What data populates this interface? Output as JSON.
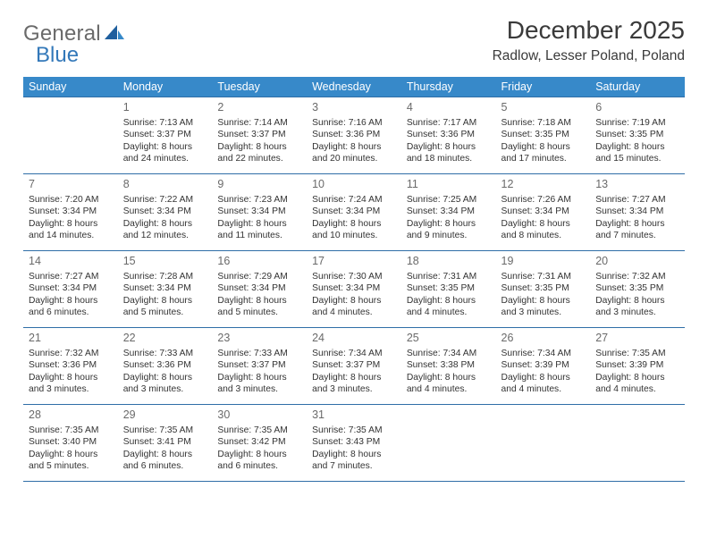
{
  "brand": {
    "word1": "General",
    "word2": "Blue"
  },
  "title": "December 2025",
  "location": "Radlow, Lesser Poland, Poland",
  "colors": {
    "header_bg": "#3789c9",
    "header_fg": "#ffffff",
    "rule": "#2f6ea7",
    "brand_gray": "#6a6a6a",
    "brand_blue": "#3378b9"
  },
  "weekdays": [
    "Sunday",
    "Monday",
    "Tuesday",
    "Wednesday",
    "Thursday",
    "Friday",
    "Saturday"
  ],
  "start_offset": 1,
  "days": [
    {
      "n": 1,
      "sr": "7:13 AM",
      "ss": "3:37 PM",
      "dl": "8 hours and 24 minutes."
    },
    {
      "n": 2,
      "sr": "7:14 AM",
      "ss": "3:37 PM",
      "dl": "8 hours and 22 minutes."
    },
    {
      "n": 3,
      "sr": "7:16 AM",
      "ss": "3:36 PM",
      "dl": "8 hours and 20 minutes."
    },
    {
      "n": 4,
      "sr": "7:17 AM",
      "ss": "3:36 PM",
      "dl": "8 hours and 18 minutes."
    },
    {
      "n": 5,
      "sr": "7:18 AM",
      "ss": "3:35 PM",
      "dl": "8 hours and 17 minutes."
    },
    {
      "n": 6,
      "sr": "7:19 AM",
      "ss": "3:35 PM",
      "dl": "8 hours and 15 minutes."
    },
    {
      "n": 7,
      "sr": "7:20 AM",
      "ss": "3:34 PM",
      "dl": "8 hours and 14 minutes."
    },
    {
      "n": 8,
      "sr": "7:22 AM",
      "ss": "3:34 PM",
      "dl": "8 hours and 12 minutes."
    },
    {
      "n": 9,
      "sr": "7:23 AM",
      "ss": "3:34 PM",
      "dl": "8 hours and 11 minutes."
    },
    {
      "n": 10,
      "sr": "7:24 AM",
      "ss": "3:34 PM",
      "dl": "8 hours and 10 minutes."
    },
    {
      "n": 11,
      "sr": "7:25 AM",
      "ss": "3:34 PM",
      "dl": "8 hours and 9 minutes."
    },
    {
      "n": 12,
      "sr": "7:26 AM",
      "ss": "3:34 PM",
      "dl": "8 hours and 8 minutes."
    },
    {
      "n": 13,
      "sr": "7:27 AM",
      "ss": "3:34 PM",
      "dl": "8 hours and 7 minutes."
    },
    {
      "n": 14,
      "sr": "7:27 AM",
      "ss": "3:34 PM",
      "dl": "8 hours and 6 minutes."
    },
    {
      "n": 15,
      "sr": "7:28 AM",
      "ss": "3:34 PM",
      "dl": "8 hours and 5 minutes."
    },
    {
      "n": 16,
      "sr": "7:29 AM",
      "ss": "3:34 PM",
      "dl": "8 hours and 5 minutes."
    },
    {
      "n": 17,
      "sr": "7:30 AM",
      "ss": "3:34 PM",
      "dl": "8 hours and 4 minutes."
    },
    {
      "n": 18,
      "sr": "7:31 AM",
      "ss": "3:35 PM",
      "dl": "8 hours and 4 minutes."
    },
    {
      "n": 19,
      "sr": "7:31 AM",
      "ss": "3:35 PM",
      "dl": "8 hours and 3 minutes."
    },
    {
      "n": 20,
      "sr": "7:32 AM",
      "ss": "3:35 PM",
      "dl": "8 hours and 3 minutes."
    },
    {
      "n": 21,
      "sr": "7:32 AM",
      "ss": "3:36 PM",
      "dl": "8 hours and 3 minutes."
    },
    {
      "n": 22,
      "sr": "7:33 AM",
      "ss": "3:36 PM",
      "dl": "8 hours and 3 minutes."
    },
    {
      "n": 23,
      "sr": "7:33 AM",
      "ss": "3:37 PM",
      "dl": "8 hours and 3 minutes."
    },
    {
      "n": 24,
      "sr": "7:34 AM",
      "ss": "3:37 PM",
      "dl": "8 hours and 3 minutes."
    },
    {
      "n": 25,
      "sr": "7:34 AM",
      "ss": "3:38 PM",
      "dl": "8 hours and 4 minutes."
    },
    {
      "n": 26,
      "sr": "7:34 AM",
      "ss": "3:39 PM",
      "dl": "8 hours and 4 minutes."
    },
    {
      "n": 27,
      "sr": "7:35 AM",
      "ss": "3:39 PM",
      "dl": "8 hours and 4 minutes."
    },
    {
      "n": 28,
      "sr": "7:35 AM",
      "ss": "3:40 PM",
      "dl": "8 hours and 5 minutes."
    },
    {
      "n": 29,
      "sr": "7:35 AM",
      "ss": "3:41 PM",
      "dl": "8 hours and 6 minutes."
    },
    {
      "n": 30,
      "sr": "7:35 AM",
      "ss": "3:42 PM",
      "dl": "8 hours and 6 minutes."
    },
    {
      "n": 31,
      "sr": "7:35 AM",
      "ss": "3:43 PM",
      "dl": "8 hours and 7 minutes."
    }
  ],
  "labels": {
    "sunrise": "Sunrise:",
    "sunset": "Sunset:",
    "daylight": "Daylight:"
  }
}
